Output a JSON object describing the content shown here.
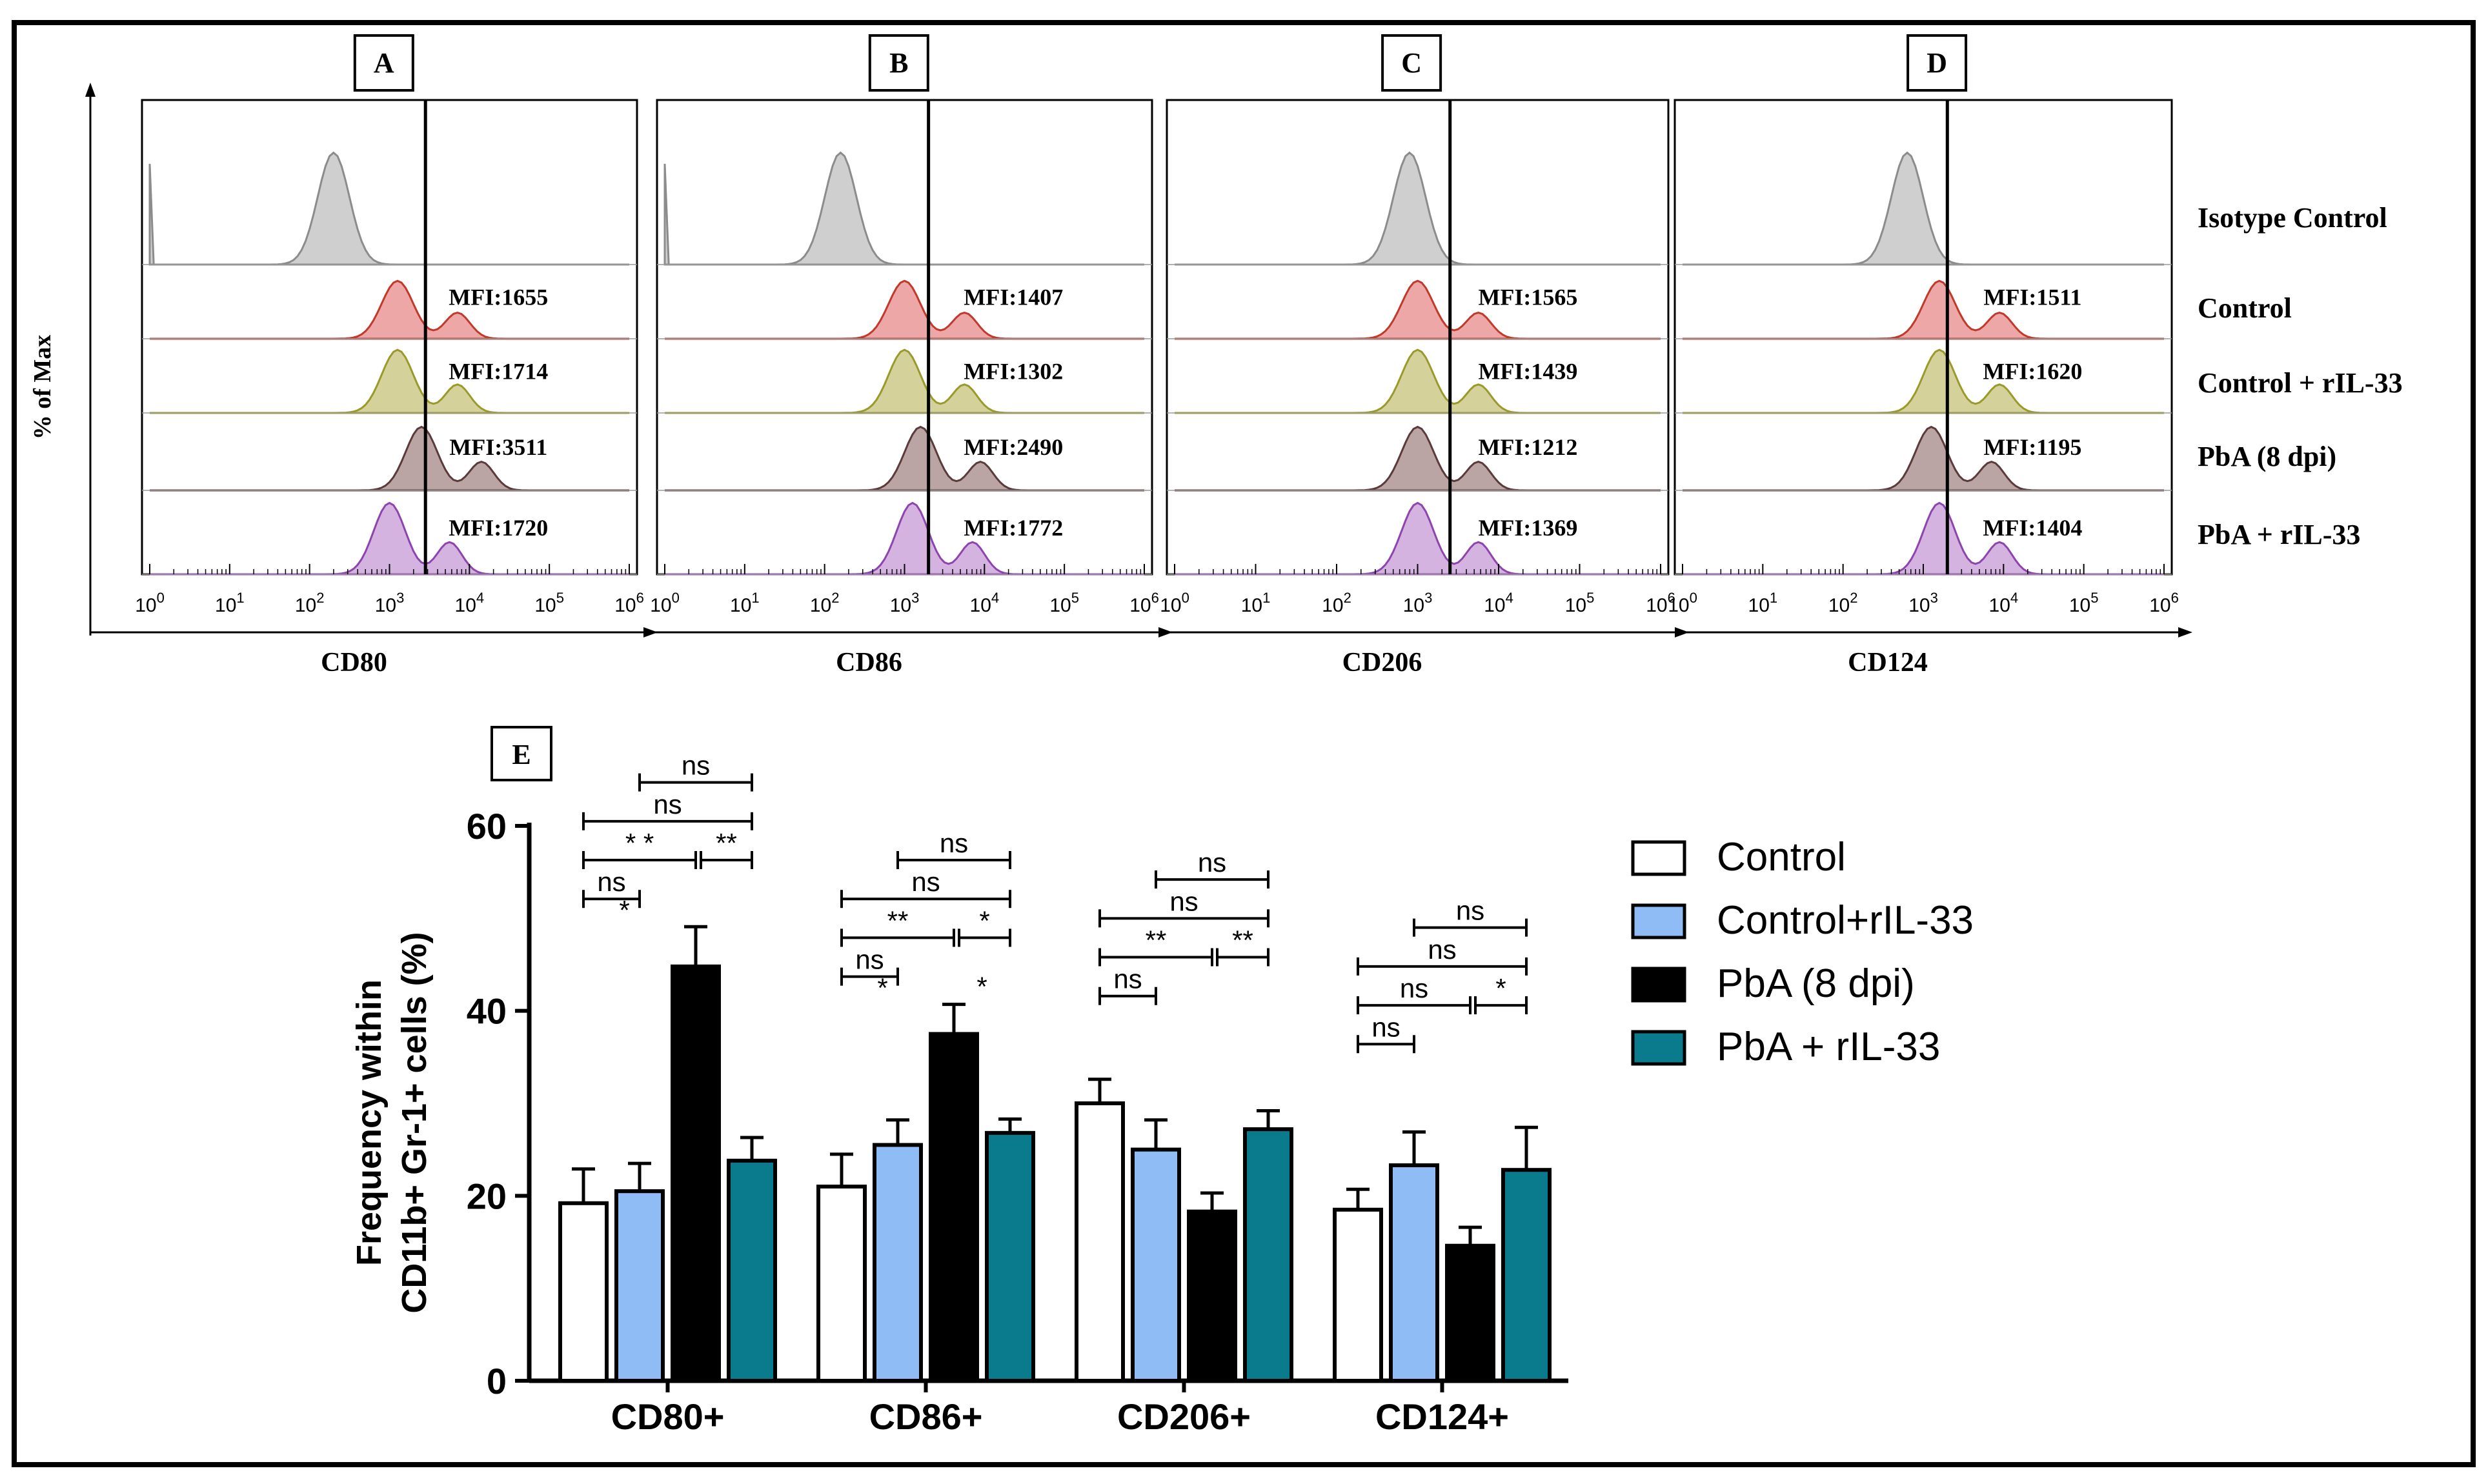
{
  "figure": {
    "y_axis_title": "% of Max",
    "row_labels": [
      "Isotype Control",
      "Control",
      "Control + rIL-33",
      "PbA (8 dpi)",
      "PbA + rIL-33"
    ],
    "panel_e_label": "E"
  },
  "colors": {
    "isotype": "#bfbfbf",
    "control": "#e88a8a",
    "control_line": "#c0392b",
    "control_rIL33": "#c6c27a",
    "control_rIL33_line": "#9a9a2a",
    "pba": "#a48585",
    "pba_line": "#5a3a3a",
    "pba_rIL33": "#c79ad6",
    "pba_rIL33_line": "#8e44ad",
    "bar_control": "#ffffff",
    "bar_control_rIL33": "#8fbcf5",
    "bar_pba": "#000000",
    "bar_pba_rIL33": "#0a7b8c"
  },
  "histograms": [
    {
      "label": "A",
      "marker": "CD80",
      "tick_labels": [
        "10^0",
        "10^1",
        "10^2",
        "10^3",
        "10^4",
        "10^5",
        "10^6"
      ],
      "marker_line_log": 3.45,
      "peaks": [
        2.3,
        3.1,
        3.1,
        3.4,
        3.0
      ],
      "mfi": [
        "MFI:1655",
        "MFI:1714",
        "MFI:3511",
        "MFI:1720"
      ]
    },
    {
      "label": "B",
      "marker": "CD86",
      "tick_labels": [
        "10^0",
        "10^1",
        "10^2",
        "10^3",
        "10^4",
        "10^5",
        "10^6"
      ],
      "marker_line_log": 3.3,
      "peaks": [
        2.2,
        3.0,
        3.0,
        3.2,
        3.1
      ],
      "mfi": [
        "MFI:1407",
        "MFI:1302",
        "MFI:2490",
        "MFI:1772"
      ]
    },
    {
      "label": "C",
      "marker": "CD206",
      "tick_labels": [
        "10^0",
        "10^1",
        "10^2",
        "10^3",
        "10^4",
        "10^5",
        "10^6"
      ],
      "marker_line_log": 3.4,
      "peaks": [
        2.9,
        3.0,
        3.0,
        3.0,
        3.0
      ],
      "mfi": [
        "MFI:1565",
        "MFI:1439",
        "MFI:1212",
        "MFI:1369"
      ]
    },
    {
      "label": "D",
      "marker": "CD124",
      "tick_labels": [
        "10^0",
        "10^1",
        "10^2",
        "10^3",
        "10^4",
        "10^5",
        "10^6"
      ],
      "marker_line_log": 3.3,
      "peaks": [
        2.8,
        3.2,
        3.2,
        3.1,
        3.2
      ],
      "mfi": [
        "MFI:1511",
        "MFI:1620",
        "MFI:1195",
        "MFI:1404"
      ]
    }
  ],
  "chart_data": {
    "type": "bar",
    "title": "",
    "ylabel_line1": "Frequency within",
    "ylabel_line2": "CD11b+ Gr-1+ cells (%)",
    "xlabel": "",
    "ylim": [
      0,
      60
    ],
    "yticks": [
      "0",
      "20",
      "40",
      "60"
    ],
    "categories": [
      "CD80+",
      "CD86+",
      "CD206+",
      "CD124+"
    ],
    "series": [
      {
        "name": "Control",
        "values": [
          19.2,
          21.0,
          30.0,
          18.5
        ],
        "errors": [
          3.7,
          3.5,
          2.6,
          2.2
        ]
      },
      {
        "name": "Control+rIL-33",
        "values": [
          20.5,
          25.5,
          25.0,
          23.3
        ],
        "errors": [
          3.0,
          2.7,
          3.2,
          3.6
        ]
      },
      {
        "name": "PbA (8 dpi)",
        "values": [
          44.8,
          37.5,
          18.3,
          14.6
        ],
        "errors": [
          4.3,
          3.2,
          2.0,
          2.0
        ]
      },
      {
        "name": "PbA + rIL-33",
        "values": [
          23.8,
          26.8,
          27.2,
          22.8
        ],
        "errors": [
          2.5,
          1.5,
          2.0,
          4.6
        ]
      }
    ],
    "significance": [
      {
        "category": 0,
        "level": 1,
        "from": 0,
        "to": 1,
        "text": "ns",
        "star": "*"
      },
      {
        "category": 0,
        "level": 2,
        "from": 0,
        "to": 2,
        "text": "* *",
        "split_to": 3,
        "split_text": "**"
      },
      {
        "category": 0,
        "level": 3,
        "from": 0,
        "to": 3,
        "text": "ns"
      },
      {
        "category": 0,
        "level": 4,
        "from": 1,
        "to": 3,
        "text": "ns"
      },
      {
        "category": 1,
        "level": 1,
        "from": 0,
        "to": 1,
        "text": "ns",
        "star": "*"
      },
      {
        "category": 1,
        "level": 2,
        "from": 0,
        "to": 2,
        "text": "**",
        "split_to": 3,
        "split_text": "*",
        "below_text": "*"
      },
      {
        "category": 1,
        "level": 3,
        "from": 0,
        "to": 3,
        "text": "ns"
      },
      {
        "category": 1,
        "level": 4,
        "from": 1,
        "to": 3,
        "text": "ns"
      },
      {
        "category": 2,
        "level": 1,
        "from": 0,
        "to": 1,
        "text": "ns"
      },
      {
        "category": 2,
        "level": 2,
        "from": 0,
        "to": 2,
        "text": "**",
        "split_to": 3,
        "split_text": "**"
      },
      {
        "category": 2,
        "level": 3,
        "from": 0,
        "to": 3,
        "text": "ns"
      },
      {
        "category": 2,
        "level": 4,
        "from": 1,
        "to": 3,
        "text": "ns"
      },
      {
        "category": 3,
        "level": 1,
        "from": 0,
        "to": 1,
        "text": "ns"
      },
      {
        "category": 3,
        "level": 2,
        "from": 0,
        "to": 2,
        "text": "ns",
        "split_to": 3,
        "split_text": "*"
      },
      {
        "category": 3,
        "level": 3,
        "from": 0,
        "to": 3,
        "text": "ns"
      },
      {
        "category": 3,
        "level": 4,
        "from": 1,
        "to": 3,
        "text": "ns"
      }
    ],
    "legend_position": "right"
  }
}
